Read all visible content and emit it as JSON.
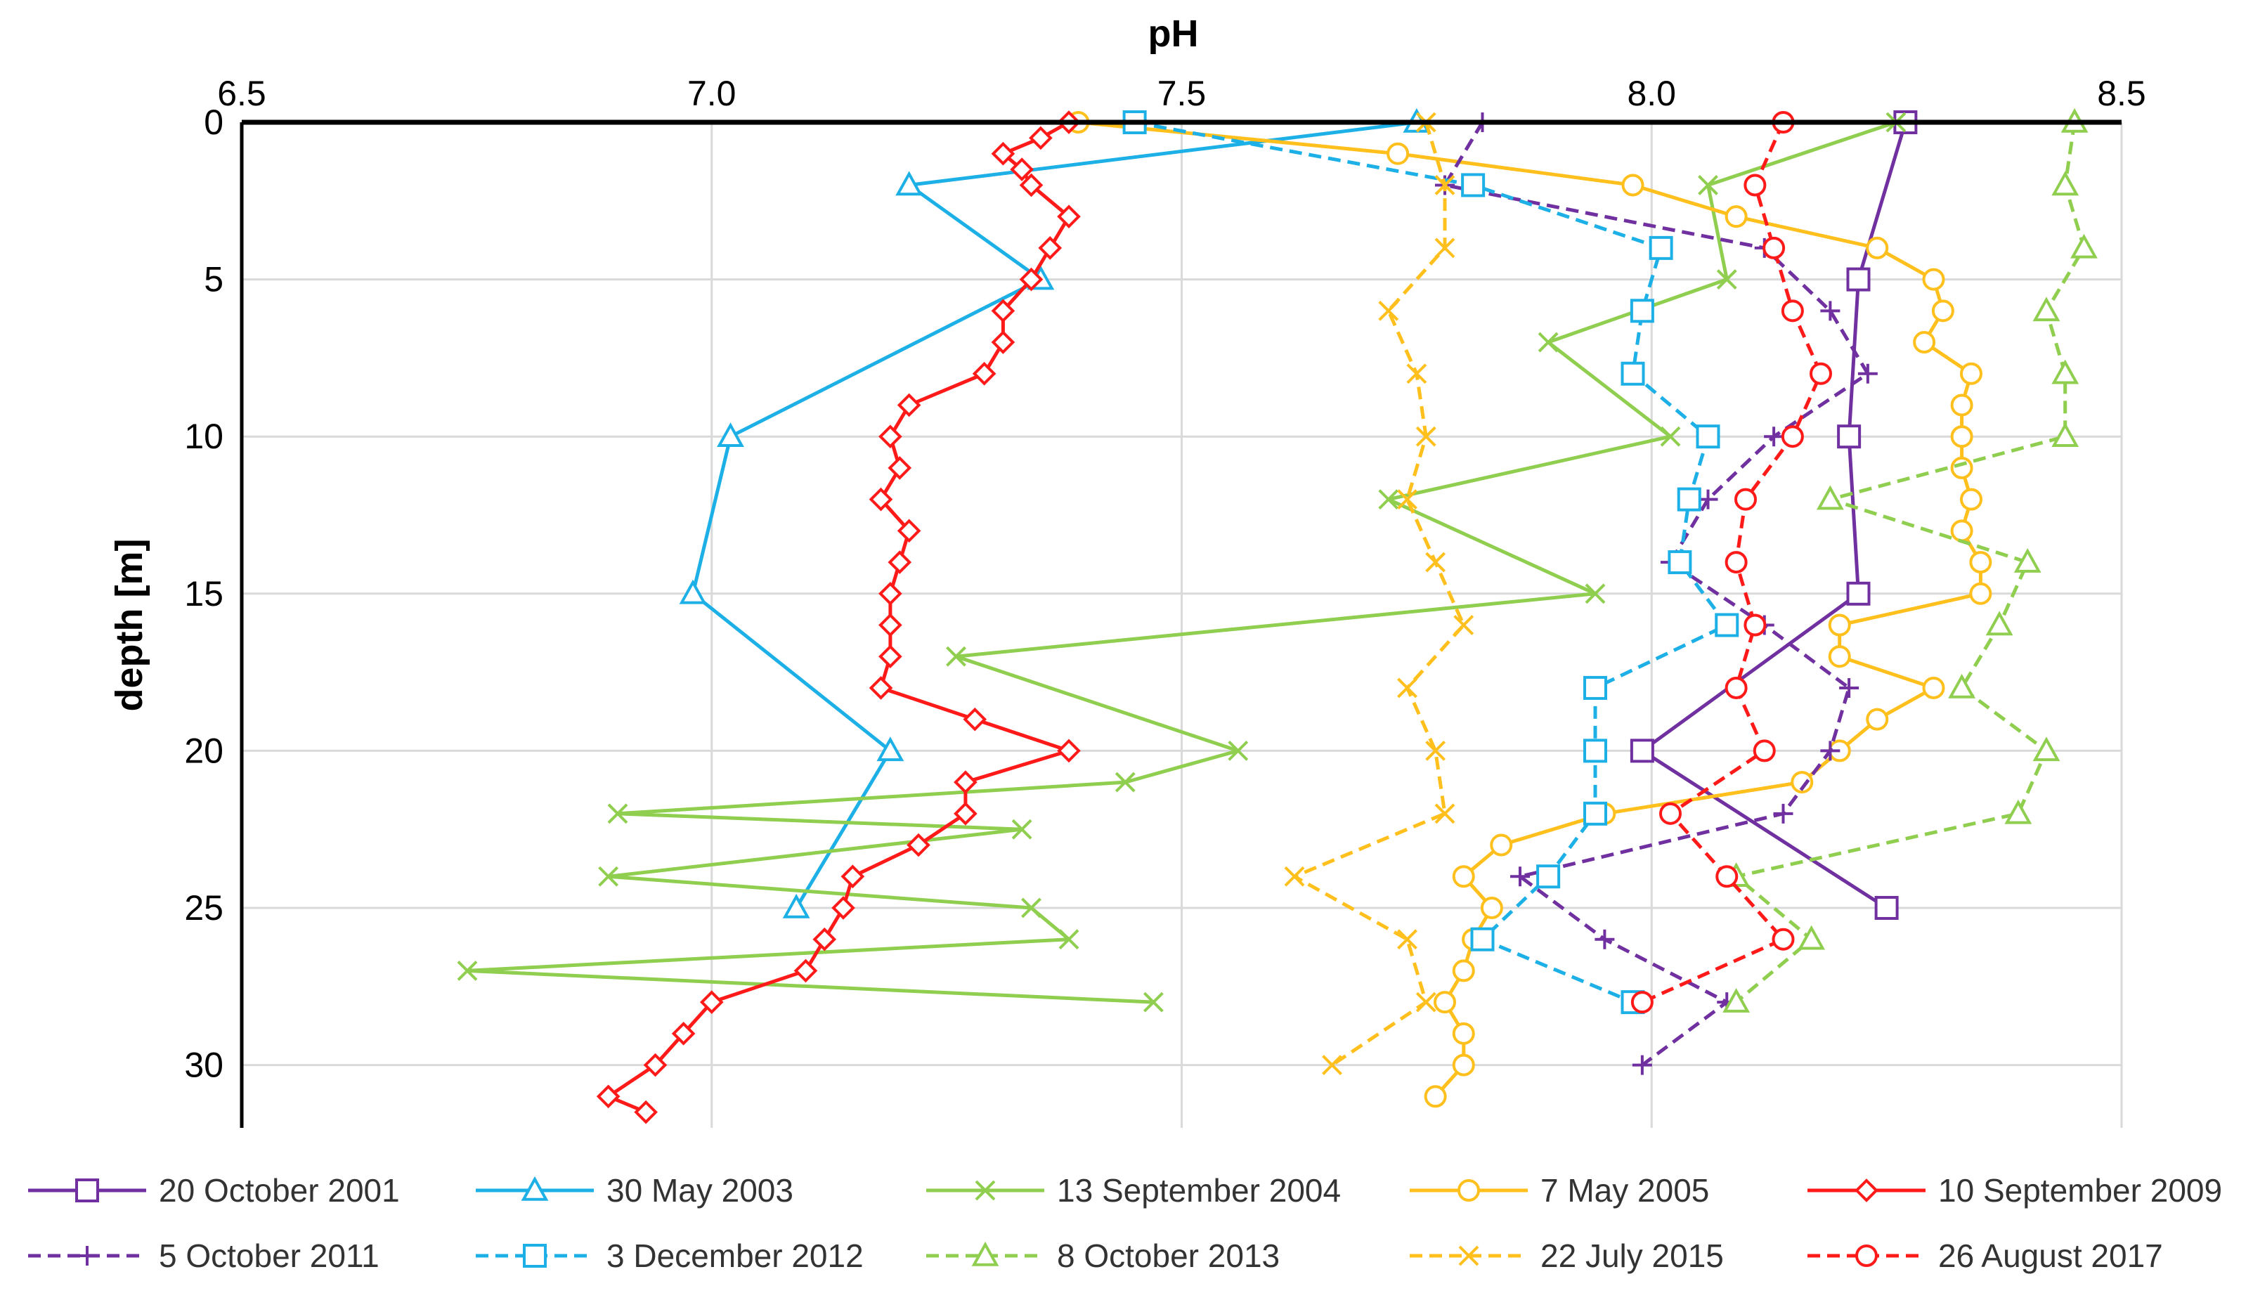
{
  "chart_data": {
    "type": "line",
    "orientation": "profile",
    "title": "pH",
    "xlabel": "pH",
    "ylabel": "depth [m]",
    "xlim": [
      6.5,
      8.5
    ],
    "ylim": [
      0,
      32
    ],
    "x_ticks": [
      "6.5",
      "7.0",
      "7.5",
      "8.0",
      "8.5"
    ],
    "x_tick_values": [
      6.5,
      7.0,
      7.5,
      8.0,
      8.5
    ],
    "y_ticks": [
      "0",
      "5",
      "10",
      "15",
      "20",
      "25",
      "30"
    ],
    "y_tick_values": [
      0,
      5,
      10,
      15,
      20,
      25,
      30
    ],
    "x_axis_position": "top",
    "grid": "vertical and horizontal at major ticks",
    "legend_position": "bottom",
    "series": [
      {
        "name": "20 October 2001",
        "color": "#7030a0",
        "dashed": false,
        "marker": "square",
        "points": [
          [
            8.27,
            0
          ],
          [
            8.22,
            5
          ],
          [
            8.21,
            10
          ],
          [
            8.22,
            15
          ],
          [
            7.99,
            20
          ],
          [
            8.25,
            25
          ]
        ]
      },
      {
        "name": "30 May 2003",
        "color": "#1cb0e6",
        "dashed": false,
        "marker": "triangle",
        "points": [
          [
            7.75,
            0
          ],
          [
            7.21,
            2
          ],
          [
            7.35,
            5
          ],
          [
            7.02,
            10
          ],
          [
            6.98,
            15
          ],
          [
            7.19,
            20
          ],
          [
            7.09,
            25
          ]
        ]
      },
      {
        "name": "13 September 2004",
        "color": "#8fce4f",
        "dashed": false,
        "marker": "x",
        "points": [
          [
            8.26,
            0
          ],
          [
            8.06,
            2
          ],
          [
            8.08,
            5
          ],
          [
            7.89,
            7
          ],
          [
            8.02,
            10
          ],
          [
            7.72,
            12
          ],
          [
            7.94,
            15
          ],
          [
            7.26,
            17
          ],
          [
            7.56,
            20
          ],
          [
            7.44,
            21
          ],
          [
            6.9,
            22
          ],
          [
            7.33,
            22.5
          ],
          [
            6.89,
            24
          ],
          [
            7.34,
            25
          ],
          [
            7.38,
            26
          ],
          [
            6.74,
            27
          ],
          [
            7.47,
            28
          ]
        ]
      },
      {
        "name": "7 May 2005",
        "color": "#ffc01d",
        "dashed": false,
        "marker": "circle",
        "points": [
          [
            7.39,
            0
          ],
          [
            7.73,
            1
          ],
          [
            7.98,
            2
          ],
          [
            8.09,
            3
          ],
          [
            8.24,
            4
          ],
          [
            8.3,
            5
          ],
          [
            8.31,
            6
          ],
          [
            8.29,
            7
          ],
          [
            8.34,
            8
          ],
          [
            8.33,
            9
          ],
          [
            8.33,
            10
          ],
          [
            8.33,
            11
          ],
          [
            8.34,
            12
          ],
          [
            8.33,
            13
          ],
          [
            8.35,
            14
          ],
          [
            8.35,
            15
          ],
          [
            8.2,
            16
          ],
          [
            8.2,
            17
          ],
          [
            8.3,
            18
          ],
          [
            8.24,
            19
          ],
          [
            8.2,
            20
          ],
          [
            8.16,
            21
          ],
          [
            7.95,
            22
          ],
          [
            7.84,
            23
          ],
          [
            7.8,
            24
          ],
          [
            7.83,
            25
          ],
          [
            7.81,
            26
          ],
          [
            7.8,
            27
          ],
          [
            7.78,
            28
          ],
          [
            7.8,
            29
          ],
          [
            7.8,
            30
          ],
          [
            7.77,
            31
          ]
        ]
      },
      {
        "name": "10 September 2009",
        "color": "#ff1a1a",
        "dashed": false,
        "marker": "diamond",
        "points": [
          [
            7.38,
            0
          ],
          [
            7.35,
            0.5
          ],
          [
            7.31,
            1
          ],
          [
            7.33,
            1.5
          ],
          [
            7.34,
            2
          ],
          [
            7.38,
            3
          ],
          [
            7.36,
            4
          ],
          [
            7.34,
            5
          ],
          [
            7.31,
            6
          ],
          [
            7.31,
            7
          ],
          [
            7.29,
            8
          ],
          [
            7.21,
            9
          ],
          [
            7.19,
            10
          ],
          [
            7.2,
            11
          ],
          [
            7.18,
            12
          ],
          [
            7.21,
            13
          ],
          [
            7.2,
            14
          ],
          [
            7.19,
            15
          ],
          [
            7.19,
            16
          ],
          [
            7.19,
            17
          ],
          [
            7.18,
            18
          ],
          [
            7.28,
            19
          ],
          [
            7.38,
            20
          ],
          [
            7.27,
            21
          ],
          [
            7.27,
            22
          ],
          [
            7.22,
            23
          ],
          [
            7.15,
            24
          ],
          [
            7.14,
            25
          ],
          [
            7.12,
            26
          ],
          [
            7.1,
            27
          ],
          [
            7.0,
            28
          ],
          [
            6.97,
            29
          ],
          [
            6.94,
            30
          ],
          [
            6.89,
            31
          ],
          [
            6.93,
            31.5
          ]
        ]
      },
      {
        "name": "5 October 2011",
        "color": "#7030a0",
        "dashed": true,
        "marker": "plus",
        "points": [
          [
            7.82,
            0
          ],
          [
            7.78,
            2
          ],
          [
            8.12,
            4
          ],
          [
            8.19,
            6
          ],
          [
            8.23,
            8
          ],
          [
            8.13,
            10
          ],
          [
            8.06,
            12
          ],
          [
            8.02,
            14
          ],
          [
            8.12,
            16
          ],
          [
            8.21,
            18
          ],
          [
            8.19,
            20
          ],
          [
            8.14,
            22
          ],
          [
            7.86,
            24
          ],
          [
            7.95,
            26
          ],
          [
            8.08,
            28
          ],
          [
            7.99,
            30
          ]
        ]
      },
      {
        "name": "3 December 2012",
        "color": "#1cb0e6",
        "dashed": true,
        "marker": "square",
        "points": [
          [
            7.45,
            0
          ],
          [
            7.81,
            2
          ],
          [
            8.01,
            4
          ],
          [
            7.99,
            6
          ],
          [
            7.98,
            8
          ],
          [
            8.06,
            10
          ],
          [
            8.04,
            12
          ],
          [
            8.03,
            14
          ],
          [
            8.08,
            16
          ],
          [
            7.94,
            18
          ],
          [
            7.94,
            20
          ],
          [
            7.94,
            22
          ],
          [
            7.89,
            24
          ],
          [
            7.82,
            26
          ],
          [
            7.98,
            28
          ]
        ]
      },
      {
        "name": "8 October 2013",
        "color": "#8fce4f",
        "dashed": true,
        "marker": "triangle",
        "points": [
          [
            8.45,
            0
          ],
          [
            8.44,
            2
          ],
          [
            8.46,
            4
          ],
          [
            8.42,
            6
          ],
          [
            8.44,
            8
          ],
          [
            8.44,
            10
          ],
          [
            8.19,
            12
          ],
          [
            8.4,
            14
          ],
          [
            8.37,
            16
          ],
          [
            8.33,
            18
          ],
          [
            8.42,
            20
          ],
          [
            8.39,
            22
          ],
          [
            8.09,
            24
          ],
          [
            8.17,
            26
          ],
          [
            8.09,
            28
          ]
        ]
      },
      {
        "name": "22 July 2015",
        "color": "#ffc01d",
        "dashed": true,
        "marker": "x",
        "points": [
          [
            7.76,
            0
          ],
          [
            7.78,
            2
          ],
          [
            7.78,
            4
          ],
          [
            7.72,
            6
          ],
          [
            7.75,
            8
          ],
          [
            7.76,
            10
          ],
          [
            7.74,
            12
          ],
          [
            7.77,
            14
          ],
          [
            7.8,
            16
          ],
          [
            7.74,
            18
          ],
          [
            7.77,
            20
          ],
          [
            7.78,
            22
          ],
          [
            7.62,
            24
          ],
          [
            7.74,
            26
          ],
          [
            7.76,
            28
          ],
          [
            7.66,
            30
          ]
        ]
      },
      {
        "name": "26 August 2017",
        "color": "#ff1a1a",
        "dashed": true,
        "marker": "circle",
        "points": [
          [
            8.14,
            0
          ],
          [
            8.11,
            2
          ],
          [
            8.13,
            4
          ],
          [
            8.15,
            6
          ],
          [
            8.18,
            8
          ],
          [
            8.15,
            10
          ],
          [
            8.1,
            12
          ],
          [
            8.09,
            14
          ],
          [
            8.11,
            16
          ],
          [
            8.09,
            18
          ],
          [
            8.12,
            20
          ],
          [
            8.02,
            22
          ],
          [
            8.08,
            24
          ],
          [
            8.14,
            26
          ],
          [
            7.99,
            28
          ]
        ]
      }
    ]
  }
}
